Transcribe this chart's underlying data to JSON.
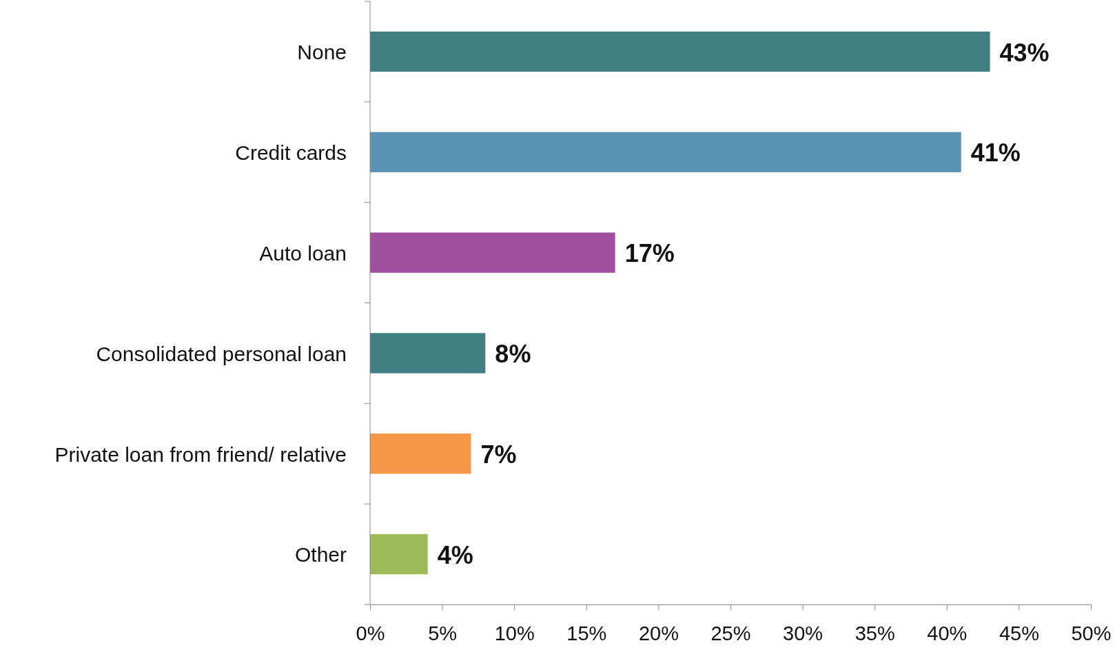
{
  "chart_data": {
    "type": "bar",
    "orientation": "horizontal",
    "categories": [
      "None",
      "Credit cards",
      "Auto loan",
      "Consolidated personal loan",
      "Private loan from friend/ relative",
      "Other"
    ],
    "values": [
      43,
      41,
      17,
      8,
      7,
      4
    ],
    "colors": [
      "#427f83",
      "#5b93b7",
      "#a04ea0",
      "#427f83",
      "#f79646",
      "#9bbb59"
    ],
    "value_labels": [
      "43%",
      "41%",
      "17%",
      "8%",
      "7%",
      "4%"
    ],
    "xlim": [
      0,
      50
    ],
    "xticks": [
      {
        "value": 0,
        "label": "0%"
      },
      {
        "value": 5,
        "label": "5%"
      },
      {
        "value": 10,
        "label": "10%"
      },
      {
        "value": 15,
        "label": "15%"
      },
      {
        "value": 20,
        "label": "20%"
      },
      {
        "value": 25,
        "label": "25%"
      },
      {
        "value": 30,
        "label": "30%"
      },
      {
        "value": 35,
        "label": "35%"
      },
      {
        "value": 40,
        "label": "40%"
      },
      {
        "value": 45,
        "label": "45%"
      },
      {
        "value": 50,
        "label": "50%"
      }
    ],
    "grid": false
  }
}
